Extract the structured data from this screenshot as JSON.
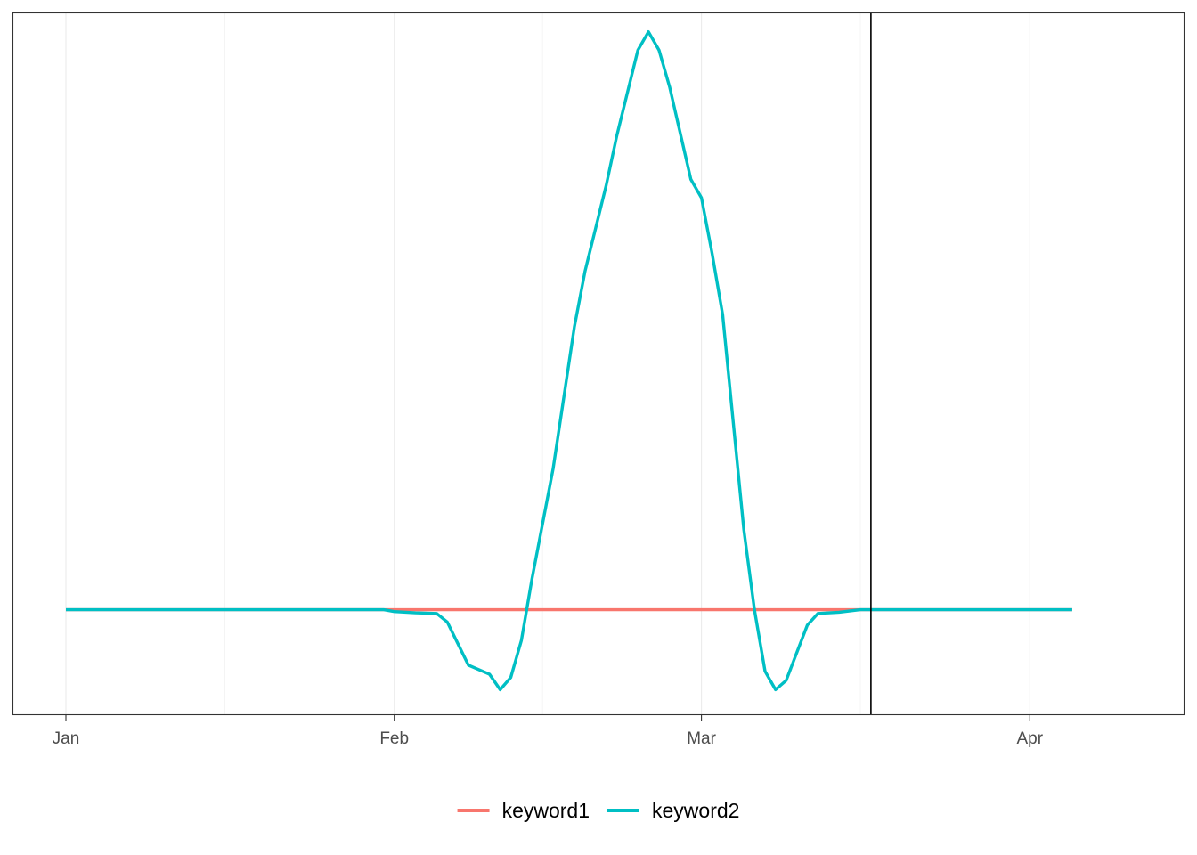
{
  "chart_data": {
    "type": "line",
    "title": "",
    "xlabel": "",
    "ylabel": "",
    "x_axis": {
      "type": "date",
      "range": [
        "2024-01-01",
        "2024-04-13"
      ],
      "ticks": [
        {
          "date": "2024-01-01",
          "label": "Jan"
        },
        {
          "date": "2024-02-01",
          "label": "Feb"
        },
        {
          "date": "2024-03-01",
          "label": "Mar"
        },
        {
          "date": "2024-04-01",
          "label": "Apr"
        }
      ],
      "minor_ticks": [
        "2024-01-16",
        "2024-02-15",
        "2024-03-16"
      ]
    },
    "y_axis": {
      "range": [
        -1.7,
        9.7
      ],
      "tick_labels": []
    },
    "grid": "vertical",
    "vertical_reference_line": "2024-03-17",
    "legend_position": "bottom",
    "series": [
      {
        "name": "keyword1",
        "color": "#F8766D",
        "points": [
          [
            "2024-01-01",
            0
          ],
          [
            "2024-04-05",
            0
          ]
        ]
      },
      {
        "name": "keyword2",
        "color": "#00BFC4",
        "points": [
          [
            "2024-01-01",
            0
          ],
          [
            "2024-01-31",
            0
          ],
          [
            "2024-02-01",
            -0.03
          ],
          [
            "2024-02-03",
            -0.05
          ],
          [
            "2024-02-05",
            -0.06
          ],
          [
            "2024-02-06",
            -0.2
          ],
          [
            "2024-02-08",
            -0.9
          ],
          [
            "2024-02-10",
            -1.05
          ],
          [
            "2024-02-11",
            -1.3
          ],
          [
            "2024-02-12",
            -1.1
          ],
          [
            "2024-02-13",
            -0.5
          ],
          [
            "2024-02-14",
            0.5
          ],
          [
            "2024-02-16",
            2.3
          ],
          [
            "2024-02-18",
            4.6
          ],
          [
            "2024-02-19",
            5.5
          ],
          [
            "2024-02-20",
            6.2
          ],
          [
            "2024-02-21",
            6.9
          ],
          [
            "2024-02-22",
            7.7
          ],
          [
            "2024-02-24",
            9.1
          ],
          [
            "2024-02-25",
            9.4
          ],
          [
            "2024-02-26",
            9.1
          ],
          [
            "2024-02-27",
            8.5
          ],
          [
            "2024-02-29",
            7.0
          ],
          [
            "2024-03-01",
            6.7
          ],
          [
            "2024-03-02",
            5.8
          ],
          [
            "2024-03-03",
            4.8
          ],
          [
            "2024-03-05",
            1.3
          ],
          [
            "2024-03-06",
            0
          ],
          [
            "2024-03-07",
            -1.0
          ],
          [
            "2024-03-08",
            -1.3
          ],
          [
            "2024-03-09",
            -1.15
          ],
          [
            "2024-03-11",
            -0.25
          ],
          [
            "2024-03-12",
            -0.06
          ],
          [
            "2024-03-14",
            -0.04
          ],
          [
            "2024-03-16",
            0
          ],
          [
            "2024-04-05",
            0
          ]
        ]
      }
    ]
  }
}
